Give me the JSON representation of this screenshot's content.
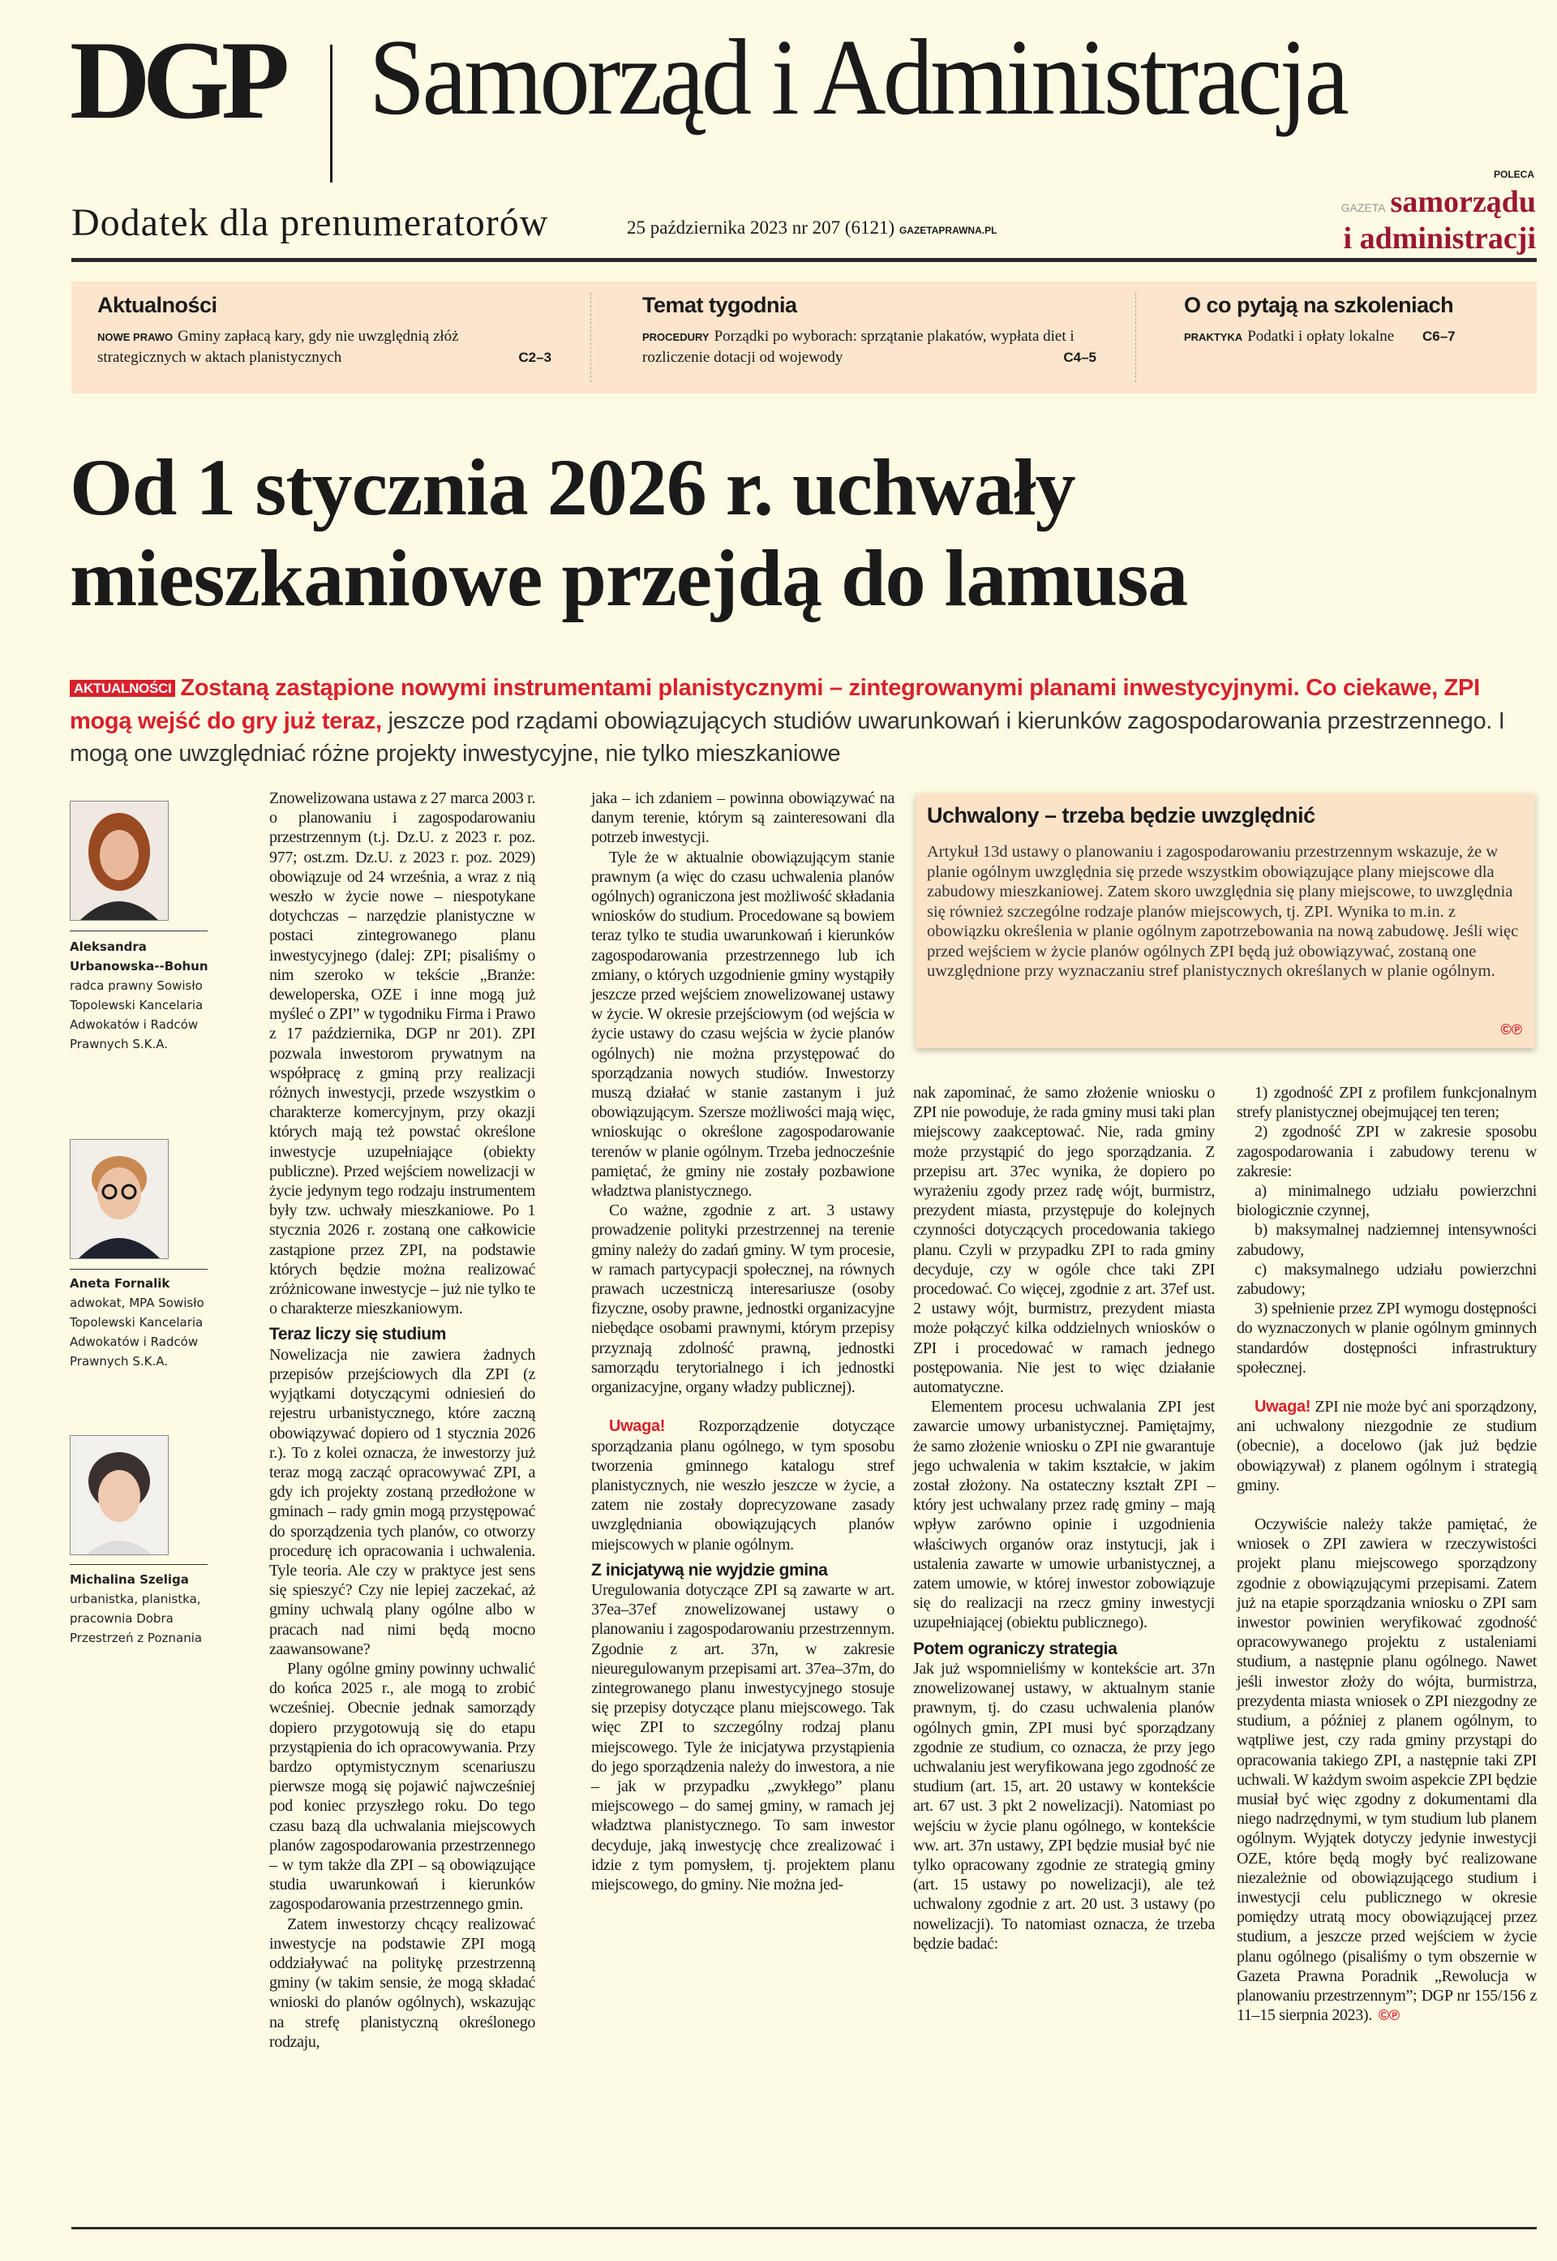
{
  "masthead": {
    "logo": "DGP",
    "title": "Samorząd i Administracja",
    "subtitle": "Dodatek dla prenumeratorów",
    "issue": "25 października 2023 nr 207 (6121)",
    "site": "GAZETAPRAWNA.PL",
    "poleca": "POLECA",
    "brand_prefix": "GAZETA",
    "brand_line1": "samorządu",
    "brand_line2": "i administracji"
  },
  "teasers": [
    {
      "section": "Aktualności",
      "kicker": "NOWE PRAWO",
      "text": "Gminy zapłacą kary, gdy nie uwzględnią złóż strategicznych w aktach planistycznych",
      "pages": "C2–3"
    },
    {
      "section": "Temat tygodnia",
      "kicker": "PROCEDURY",
      "text": "Porządki po wyborach: sprzątanie plakatów, wypłata diet i rozliczenie dotacji od wojewody",
      "pages": "C4–5"
    },
    {
      "section": "O co pytają na szkoleniach",
      "kicker": "PRAKTYKA",
      "text": "Podatki i opłaty lokalne",
      "pages": "C6–7"
    }
  ],
  "article": {
    "headline": "Od 1 stycznia 2026 r. uchwały mieszkaniowe przejdą do lamusa",
    "lead_tag": "AKTUALNOŚCI",
    "lead_red": "Zostaną zastąpione nowymi instrumentami planistycznymi – zintegrowanymi planami inwestycyjnymi. Co ciekawe, ZPI mogą wejść do gry już teraz,",
    "lead_rest": " jeszcze pod rządami obowiązujących studiów uwarunkowań i kierunków zagospodarowania przestrzennego. I mogą one uwzględniać różne projekty inwestycyjne, nie tylko mieszkaniowe",
    "authors": [
      {
        "name": "Aleksandra Urbanowska--Bohun",
        "role": "radca prawny Sowisło Topolewski Kancelaria Adwokatów i Radców Prawnych S.K.A."
      },
      {
        "name": "Aneta Fornalik",
        "role": "adwokat, MPA Sowisło Topolewski Kancelaria Adwokatów i Radców Prawnych S.K.A."
      },
      {
        "name": "Michalina Szeliga",
        "role": "urbanistka, planistka, pracownia Dobra Przestrzeń z Poznania"
      }
    ],
    "box": {
      "title": "Uchwalony – trzeba będzie uwzględnić",
      "text": "Artykuł 13d ustawy o planowaniu i zagospodarowaniu przestrzennym wskazuje, że w planie ogólnym uwzględnia się przede wszystkim obowiązujące plany miejscowe dla zabudowy mieszkaniowej. Zatem skoro uwzględnia się plany miejscowe, to uwzględnia się również szczególne rodzaje planów miejscowych, tj. ZPI. Wynika to m.in. z obowiązku określenia w planie ogólnym zapotrzebowania na nową zabudowę. Jeśli więc przed wejściem w życie planów ogólnych ZPI będą już obowiązywać, zostaną one uwzględnione przy wyznaczaniu stref planistycznych określanych w planie ogólnym.",
      "copyright": "©℗"
    },
    "columns": [
      [
        {
          "t": "p",
          "cls": "noind",
          "text": "Znowelizowana ustawa z 27 marca 2003 r. o planowaniu i zagospodarowaniu przestrzennym (t.j. Dz.U. z 2023 r. poz. 977; ost.zm. Dz.U. z 2023 r. poz. 2029) obowiązuje od 24 września, a wraz z nią weszło w życie nowe – niespotykane dotychczas – narzędzie planistyczne w postaci zintegrowanego planu inwestycyjnego (dalej: ZPI; pisaliśmy o nim szeroko w tekście „Branże: deweloperska, OZE i inne mogą już myśleć o ZPI” w tygodniku Firma i Prawo z 17 października, DGP nr 201). ZPI pozwala inwestorom prywatnym na współpracę z gminą przy realizacji różnych inwestycji, przede wszystkim o charakterze komercyjnym, przy okazji których mają też powstać określone inwestycje uzupełniające (obiekty publiczne). Przed wejściem nowelizacji w życie jedynym tego rodzaju instrumentem były tzw. uchwały mieszkaniowe. Po 1 stycznia 2026 r. zostaną one całkowicie zastąpione przez ZPI, na podstawie których będzie można realizować zróżnicowane inwestycje – już nie tylko te o charakterze mieszkaniowym."
        },
        {
          "t": "h",
          "text": "Teraz liczy się studium"
        },
        {
          "t": "p",
          "cls": "noind",
          "text": "Nowelizacja nie zawiera żadnych przepisów przejściowych dla ZPI (z wyjątkami dotyczącymi odniesień do rejestru urbanistycznego, które zaczną obowiązywać dopiero od 1 stycznia 2026 r.). To z kolei oznacza, że inwestorzy już teraz mogą zacząć opracowywać ZPI, a gdy ich projekty zostaną przedłożone w gminach – rady gmin mogą przystępować do sporządzenia tych planów, co otworzy procedurę ich opracowania i uchwalenia. Tyle teoria. Ale czy w praktyce jest sens się spieszyć? Czy nie lepiej zaczekać, aż gminy uchwalą plany ogólne albo w pracach nad nimi będą mocno zaawansowane?"
        },
        {
          "t": "p",
          "text": "Plany ogólne gminy powinny uchwalić do końca 2025 r., ale mogą to zrobić wcześniej. Obecnie jednak samorządy dopiero przygotowują się do etapu przystąpienia do ich opracowywania. Przy bardzo optymistycznym scenariuszu pierwsze mogą się pojawić najwcześniej pod koniec przyszłego roku. Do tego czasu bazą dla uchwalania miejscowych planów zagospodarowania przestrzennego – w tym także dla ZPI – są obowiązujące studia uwarunkowań i kierunków zagospodarowania przestrzennego gmin."
        },
        {
          "t": "p",
          "text": "Zatem inwestorzy chcący realizować inwestycje na podstawie ZPI mogą oddziaływać na politykę przestrzenną gminy (w takim sensie, że mogą składać wnioski do planów ogólnych), wskazując na strefę planistyczną określonego rodzaju,"
        }
      ],
      [
        {
          "t": "p",
          "cls": "noind",
          "text": "jaka – ich zdaniem – powinna obowiązywać na danym terenie, którym są zainteresowani dla potrzeb inwestycji."
        },
        {
          "t": "p",
          "text": "Tyle że w aktualnie obowiązującym stanie prawnym (a więc do czasu uchwalenia planów ogólnych) ograniczona jest możliwość składania wniosków do studium. Procedowane są bowiem teraz tylko te studia uwarunkowań i kierunków zagospodarowania przestrzennego lub ich zmiany, o których uzgodnienie gminy wystąpiły jeszcze przed wejściem znowelizowanej ustawy w życie. W okresie przejściowym (od wejścia w życie ustawy do czasu wejścia w życie planów ogólnych) nie można przystępować do sporządzania nowych studiów. Inwestorzy muszą działać w stanie zastanym i już obowiązującym. Szersze możliwości mają więc, wnioskując o określone zagospodarowanie terenów w planie ogólnym. Trzeba jednocześnie pamiętać, że gminy nie zostały pozbawione władztwa planistycznego."
        },
        {
          "t": "p",
          "text": "Co ważne, zgodnie z art. 3 ustawy prowadzenie polityki przestrzennej na terenie gminy należy do zadań gminy. W tym procesie, w ramach partycypacji społecznej, na równych prawach uczestniczą interesariusze (osoby fizyczne, osoby prawne, jednostki organizacyjne niebędące osobami prawnymi, którym przepisy przyznają zdolność prawną, jednostki samorządu terytorialnego i ich jednostki organizacyjne, organy władzy publicznej)."
        },
        {
          "t": "p",
          "cls": "gap",
          "warn": "Uwaga!",
          "text": " Rozporządzenie dotyczące sporządzania planu ogólnego, w tym sposobu tworzenia gminnego katalogu stref planistycznych, nie weszło jeszcze w życie, a zatem nie zostały doprecyzowane zasady uwzględniania obowiązujących planów miejscowych w planie ogólnym."
        },
        {
          "t": "h",
          "text": "Z inicjatywą nie wyjdzie gmina"
        },
        {
          "t": "p",
          "cls": "noind",
          "text": "Uregulowania dotyczące ZPI są zawarte w art. 37ea–37ef znowelizowanej ustawy o planowaniu i zagospodarowaniu przestrzennym. Zgodnie z art. 37n, w zakresie nieuregulowanym przepisami art. 37ea–37m, do zintegrowanego planu inwestycyjnego stosuje się przepisy dotyczące planu miejscowego. Tak więc ZPI to szczególny rodzaj planu miejscowego. Tyle że inicjatywa przystąpienia do jego sporządzenia należy do inwestora, a nie – jak w przypadku „zwykłego” planu miejscowego – do samej gminy, w ramach jej władztwa planistycznego. To sam inwestor decyduje, jaką inwestycję chce zrealizować i idzie z tym pomysłem, tj. projektem planu miejscowego, do gminy. Nie można jed-"
        }
      ],
      [
        {
          "t": "p",
          "cls": "noind",
          "text": "nak zapominać, że samo złożenie wniosku o ZPI nie powoduje, że rada gminy musi taki plan miejscowy zaakceptować. Nie, rada gminy może przystąpić do jego sporządzania. Z przepisu art. 37ec wynika, że dopiero po wyrażeniu zgody przez radę wójt, burmistrz, prezydent miasta, przystępuje do kolejnych czynności dotyczących procedowania takiego planu. Czyli w przypadku ZPI to rada gminy decyduje, czy w ogóle chce taki ZPI procedować. Co więcej, zgodnie z art. 37ef ust. 2 ustawy wójt, burmistrz, prezydent miasta może połączyć kilka oddzielnych wniosków o ZPI i procedować w ramach jednego postępowania. Nie jest to więc działanie automatyczne."
        },
        {
          "t": "p",
          "text": "Elementem procesu uchwalania ZPI jest zawarcie umowy urbanistycznej. Pamiętajmy, że samo złożenie wniosku o ZPI nie gwarantuje jego uchwalenia w takim kształcie, w jakim został złożony. Na ostateczny kształt ZPI – który jest uchwalany przez radę gminy – mają wpływ zarówno opinie i uzgodnienia właściwych organów oraz instytucji, jak i ustalenia zawarte w umowie urbanistycznej, a zatem umowie, w której inwestor zobowiązuje się do realizacji na rzecz gminy inwestycji uzupełniającej (obiektu publicznego)."
        },
        {
          "t": "h",
          "text": "Potem ograniczy strategia"
        },
        {
          "t": "p",
          "cls": "noind",
          "text": "Jak już wspomnieliśmy w kontekście art. 37n znowelizowanej ustawy, w aktualnym stanie prawnym, tj. do czasu uchwalenia planów ogólnych gmin, ZPI musi być sporządzany zgodnie ze studium, co oznacza, że przy jego uchwalaniu jest weryfikowana jego zgodność ze studium (art. 15, art. 20 ustawy w kontekście art. 67 ust. 3 pkt 2 nowelizacji). Natomiast po wejściu w życie planu ogólnego, w kontekście ww. art. 37n ustawy, ZPI będzie musiał być nie tylko opracowany zgodnie ze strategią gminy (art. 15 ustawy po nowelizacji), ale też uchwalony zgodnie z art. 20 ust. 3 ustawy (po nowelizacji). To natomiast oznacza, że trzeba będzie badać:"
        }
      ],
      [
        {
          "t": "p",
          "text": "1) zgodność ZPI z profilem funkcjonalnym strefy planistycznej obejmującej ten teren;"
        },
        {
          "t": "p",
          "text": "2) zgodność ZPI w zakresie sposobu zagospodarowania i zabudowy terenu w zakresie:"
        },
        {
          "t": "p",
          "text": "a) minimalnego udziału powierzchni biologicznie czynnej,"
        },
        {
          "t": "p",
          "text": "b) maksymalnej nadziemnej intensywności zabudowy,"
        },
        {
          "t": "p",
          "text": "c) maksymalnego udziału powierzchni zabudowy;"
        },
        {
          "t": "p",
          "text": "3) spełnienie przez ZPI wymogu dostępności do wyznaczonych w planie ogólnym gminnych standardów dostępności infrastruktury społecznej."
        },
        {
          "t": "p",
          "cls": "gap",
          "warn": "Uwaga!",
          "text": " ZPI nie może być ani sporządzony, ani uchwalony niezgodnie ze studium (obecnie), a docelowo (jak już będzie obowiązywał) z planem ogólnym i strategią gminy."
        },
        {
          "t": "p",
          "cls": "gap",
          "text": "Oczywiście należy także pamiętać, że wniosek o ZPI zawiera w rzeczywistości projekt planu miejscowego sporządzony zgodnie z obowiązującymi przepisami. Zatem już na etapie sporządzania wniosku o ZPI sam inwestor powinien weryfikować zgodność opracowywanego projektu z ustaleniami studium, a następnie planu ogólnego. Nawet jeśli inwestor złoży do wójta, burmistrza, prezydenta miasta wniosek o ZPI niezgodny ze studium, a później z planem ogólnym, to wątpliwe jest, czy rada gminy przystąpi do opracowania takiego ZPI, a następnie taki ZPI uchwali. W każdym swoim aspekcie ZPI będzie musiał być więc zgodny z dokumentami dla niego nadrzędnymi, w tym studium lub planem ogólnym. Wyjątek dotyczy jedynie inwestycji OZE, które będą mogły być realizowane niezależnie od obowiązującego studium i inwestycji celu publicznego w okresie pomiędzy utratą mocy obowiązującej przez studium, a jeszcze przed wejściem w życie planu ogólnego (pisaliśmy o tym obszernie w Gazeta Prawna Poradnik „Rewolucja w planowaniu przestrzennym”; DGP nr 155/156 z 11–15 sierpnia 2023).",
          "cp": "©℗"
        }
      ]
    ]
  },
  "colors": {
    "background": "#fdfbe4",
    "teaser_bg": "#fbe5cc",
    "accent_red": "#d8212b",
    "brand": "#9b1632"
  }
}
